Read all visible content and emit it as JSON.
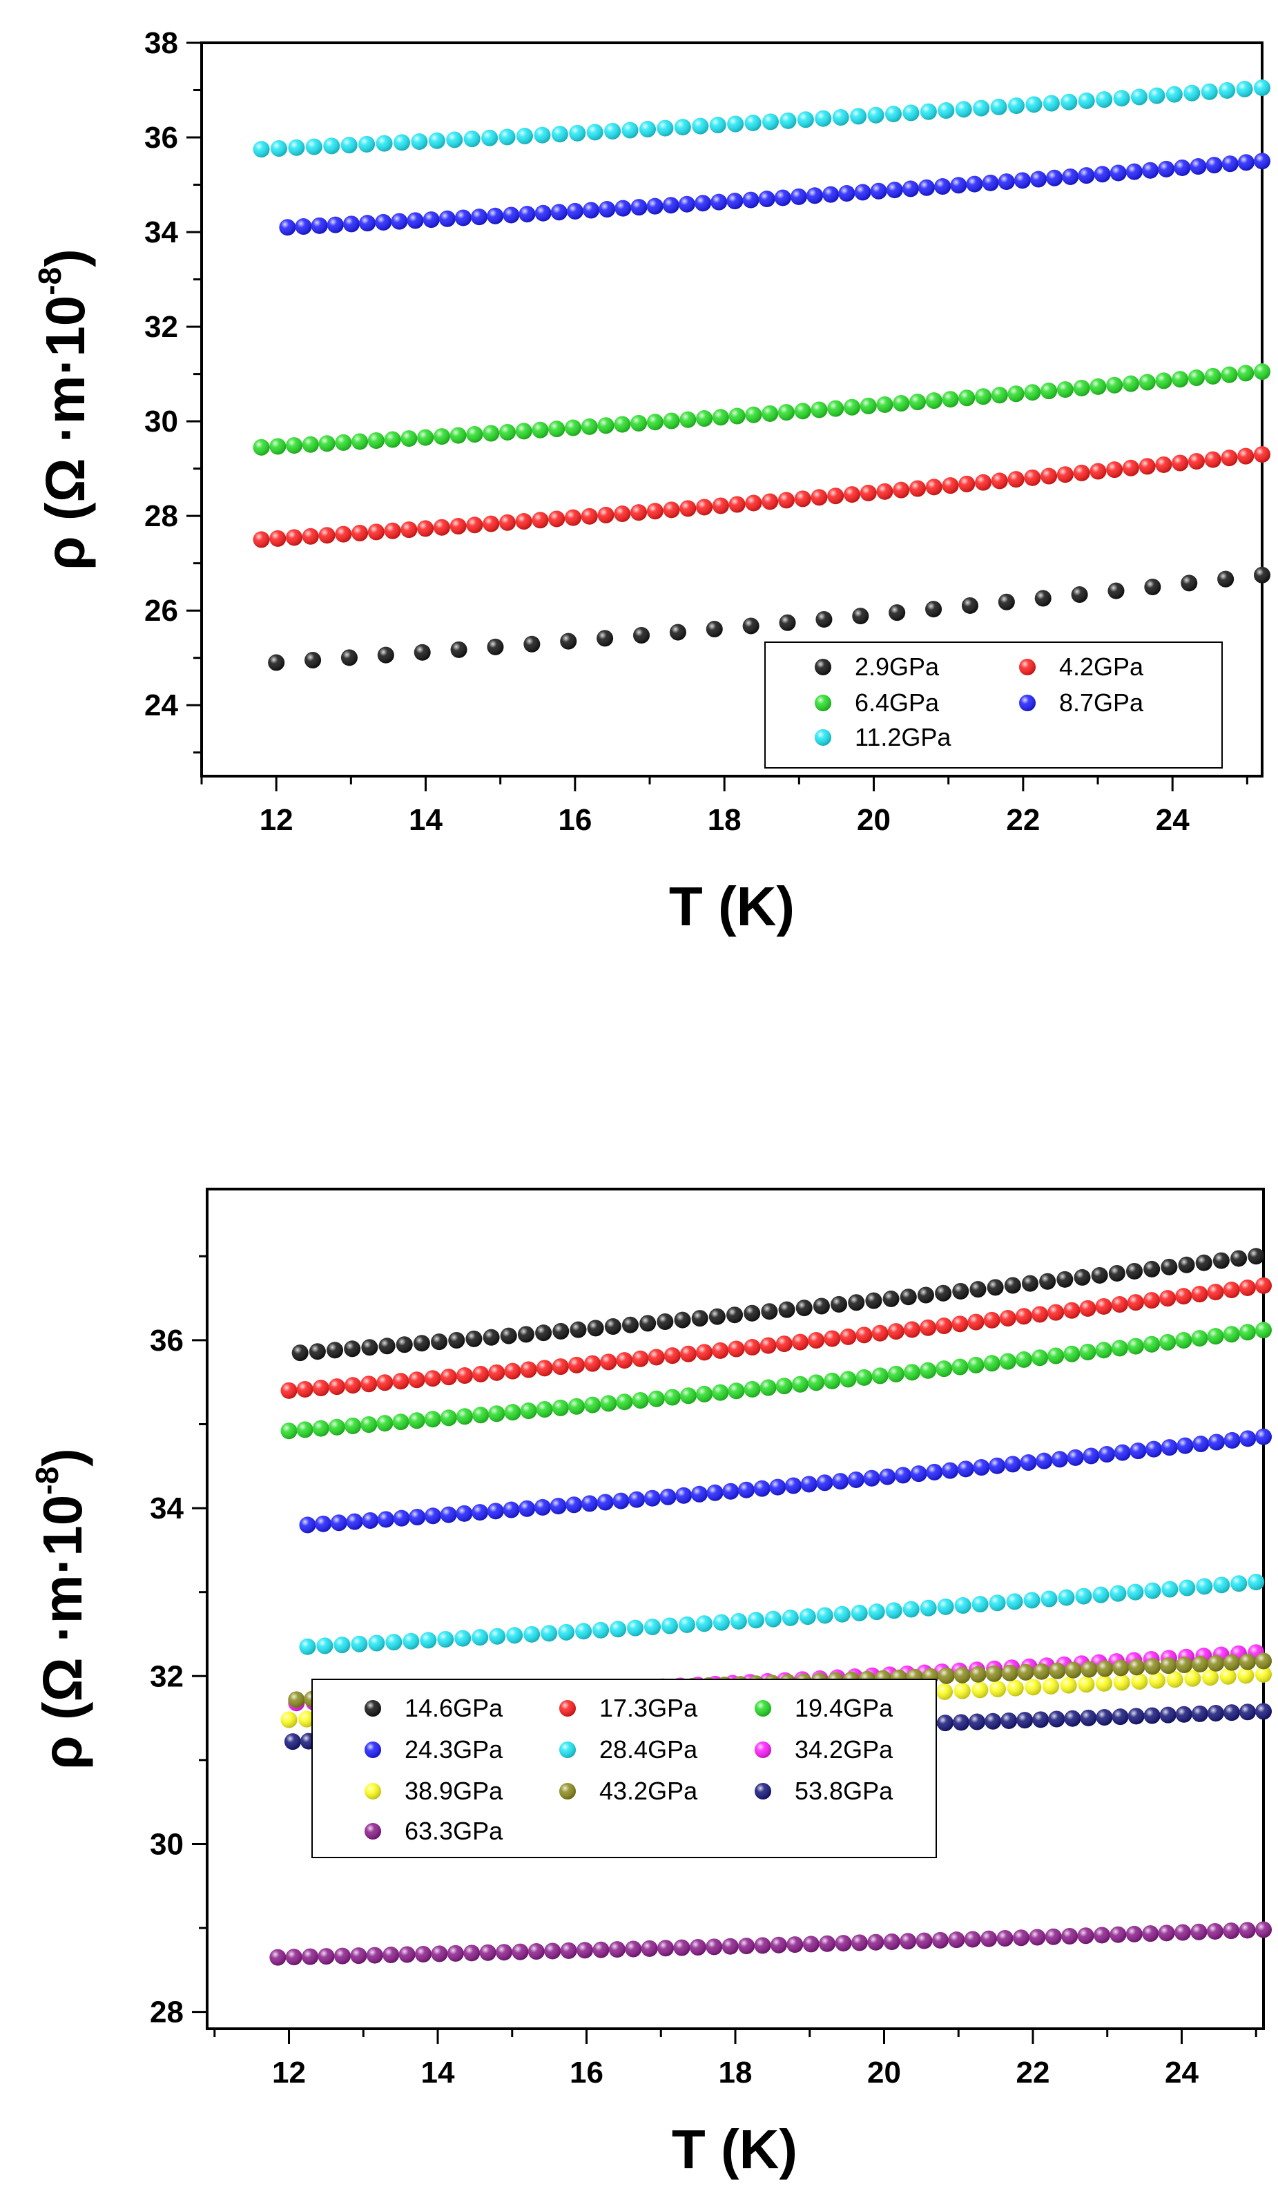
{
  "chart_data": [
    {
      "type": "scatter",
      "title": "",
      "xlabel": "T (K)",
      "ylabel_main": "ρ (Ω ·m·10",
      "ylabel_exp": "-8",
      "ylabel_close": ")",
      "xlim": [
        11.0,
        25.2
      ],
      "ylim": [
        22.5,
        38
      ],
      "xticks": [
        "12",
        "14",
        "16",
        "18",
        "20",
        "22",
        "24"
      ],
      "yticks": [
        "24",
        "26",
        "28",
        "30",
        "32",
        "34",
        "36",
        "38"
      ],
      "series": [
        {
          "name": "2.9GPa",
          "color": "#111111",
          "x_start": 12.0,
          "x_end": 25.2,
          "count": 28,
          "y_start": 24.9,
          "y_end": 26.75
        },
        {
          "name": "4.2GPa",
          "color": "#ff1a1a",
          "x_start": 11.8,
          "x_end": 25.2,
          "count": 62,
          "y_start": 27.5,
          "y_end": 29.3
        },
        {
          "name": "6.4GPa",
          "color": "#22dd22",
          "x_start": 11.8,
          "x_end": 25.2,
          "count": 62,
          "y_start": 29.45,
          "y_end": 31.05
        },
        {
          "name": "8.7GPa",
          "color": "#1a1aff",
          "x_start": 12.15,
          "x_end": 25.2,
          "count": 62,
          "y_start": 34.1,
          "y_end": 35.5
        },
        {
          "name": "11.2GPa",
          "color": "#1ae6f5",
          "x_start": 11.8,
          "x_end": 25.2,
          "count": 58,
          "y_start": 35.75,
          "y_end": 37.05
        }
      ]
    },
    {
      "type": "scatter",
      "title": "",
      "xlabel": "T (K)",
      "ylabel_main": "ρ (Ω ·m·10",
      "ylabel_exp": "-8",
      "ylabel_close": ")",
      "xlim": [
        10.9,
        25.1
      ],
      "ylim": [
        27.8,
        37.8
      ],
      "xticks": [
        "12",
        "14",
        "16",
        "18",
        "20",
        "22",
        "24"
      ],
      "yticks": [
        "28",
        "30",
        "32",
        "34",
        "36"
      ],
      "series": [
        {
          "name": "14.6GPa",
          "color": "#111111",
          "x_start": 12.15,
          "x_end": 25.0,
          "count": 56,
          "y_start": 35.85,
          "y_end": 37.0
        },
        {
          "name": "17.3GPa",
          "color": "#ff1a1a",
          "x_start": 12.0,
          "x_end": 25.1,
          "count": 62,
          "y_start": 35.4,
          "y_end": 36.65
        },
        {
          "name": "19.4GPa",
          "color": "#22dd22",
          "x_start": 12.0,
          "x_end": 25.1,
          "count": 62,
          "y_start": 34.92,
          "y_end": 36.12
        },
        {
          "name": "24.3GPa",
          "color": "#1a1aff",
          "x_start": 12.25,
          "x_end": 25.1,
          "count": 62,
          "y_start": 33.8,
          "y_end": 34.85
        },
        {
          "name": "28.4GPa",
          "color": "#1ae6f5",
          "x_start": 12.25,
          "x_end": 25.0,
          "count": 56,
          "y_start": 32.35,
          "y_end": 33.12
        },
        {
          "name": "34.2GPa",
          "color": "#ff1aff",
          "x_start": 12.1,
          "x_end": 25.0,
          "count": 56,
          "y_start": 31.68,
          "y_end": 32.28
        },
        {
          "name": "38.9GPa",
          "color": "#ffff1a",
          "x_start": 12.0,
          "x_end": 25.1,
          "count": 56,
          "y_start": 31.48,
          "y_end": 32.02
        },
        {
          "name": "43.2GPa",
          "color": "#8a8a1a",
          "x_start": 12.1,
          "x_end": 25.1,
          "count": 62,
          "y_start": 31.72,
          "y_end": 32.18
        },
        {
          "name": "53.8GPa",
          "color": "#14147a",
          "x_start": 12.05,
          "x_end": 25.1,
          "count": 62,
          "y_start": 31.22,
          "y_end": 31.58
        },
        {
          "name": "63.3GPa",
          "color": "#8b1a8b",
          "x_start": 11.85,
          "x_end": 25.1,
          "count": 62,
          "y_start": 28.65,
          "y_end": 28.98
        }
      ]
    }
  ]
}
